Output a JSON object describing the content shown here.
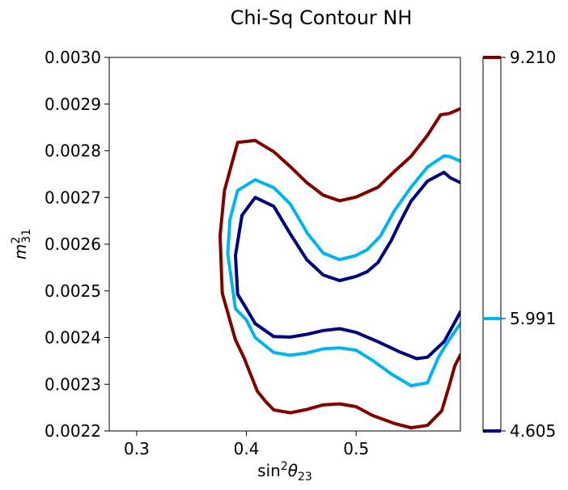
{
  "chart_data": {
    "type": "contour",
    "title": "Chi-Sq Contour NH",
    "xlabel_base": "sin",
    "xlabel_sup": "2",
    "xlabel_theta": "θ",
    "xlabel_sub": "23",
    "ylabel_base": "m",
    "ylabel_sup": "2",
    "ylabel_sub": "31",
    "xlim": [
      0.275,
      0.595
    ],
    "ylim": [
      0.0022,
      0.003
    ],
    "xticks": [
      0.3,
      0.4,
      0.5
    ],
    "xtick_labels": [
      "0.3",
      "0.4",
      "0.5"
    ],
    "yticks": [
      0.0022,
      0.0023,
      0.0024,
      0.0025,
      0.0026,
      0.0027,
      0.0028,
      0.0029,
      0.003
    ],
    "ytick_labels": [
      "0.0022",
      "0.0023",
      "0.0024",
      "0.0025",
      "0.0026",
      "0.0027",
      "0.0028",
      "0.0029",
      "0.0030"
    ],
    "grid": false,
    "colorbar": {
      "ticks": [
        4.605,
        5.991,
        9.21
      ],
      "tick_labels": [
        "4.605",
        "5.991",
        "9.210"
      ]
    },
    "levels": [
      {
        "level": 4.605,
        "color": "#00007f",
        "points": [
          [
            0.595,
            0.002732
          ],
          [
            0.586,
            0.002742
          ],
          [
            0.58,
            0.002754
          ],
          [
            0.565,
            0.002735
          ],
          [
            0.55,
            0.002692
          ],
          [
            0.54,
            0.002647
          ],
          [
            0.532,
            0.002608
          ],
          [
            0.52,
            0.002561
          ],
          [
            0.51,
            0.002541
          ],
          [
            0.5,
            0.002531
          ],
          [
            0.485,
            0.002522
          ],
          [
            0.47,
            0.002534
          ],
          [
            0.455,
            0.002567
          ],
          [
            0.44,
            0.002622
          ],
          [
            0.425,
            0.002681
          ],
          [
            0.408,
            0.0027
          ],
          [
            0.396,
            0.002662
          ],
          [
            0.39,
            0.002576
          ],
          [
            0.392,
            0.002493
          ],
          [
            0.4,
            0.002462
          ],
          [
            0.408,
            0.00243
          ],
          [
            0.425,
            0.002402
          ],
          [
            0.44,
            0.002401
          ],
          [
            0.455,
            0.002407
          ],
          [
            0.47,
            0.002415
          ],
          [
            0.485,
            0.002419
          ],
          [
            0.5,
            0.002411
          ],
          [
            0.52,
            0.002391
          ],
          [
            0.54,
            0.002369
          ],
          [
            0.555,
            0.002355
          ],
          [
            0.565,
            0.002358
          ],
          [
            0.58,
            0.002391
          ],
          [
            0.59,
            0.002433
          ],
          [
            0.595,
            0.002455
          ]
        ]
      },
      {
        "level": 5.991,
        "color": "#00b4f0",
        "points": [
          [
            0.595,
            0.002778
          ],
          [
            0.585,
            0.002788
          ],
          [
            0.58,
            0.002789
          ],
          [
            0.565,
            0.002765
          ],
          [
            0.55,
            0.002722
          ],
          [
            0.535,
            0.002672
          ],
          [
            0.522,
            0.002617
          ],
          [
            0.51,
            0.002588
          ],
          [
            0.5,
            0.002576
          ],
          [
            0.485,
            0.002567
          ],
          [
            0.47,
            0.002581
          ],
          [
            0.456,
            0.002622
          ],
          [
            0.44,
            0.002686
          ],
          [
            0.425,
            0.002721
          ],
          [
            0.408,
            0.002738
          ],
          [
            0.392,
            0.002715
          ],
          [
            0.385,
            0.002653
          ],
          [
            0.383,
            0.00258
          ],
          [
            0.39,
            0.002462
          ],
          [
            0.4,
            0.002438
          ],
          [
            0.408,
            0.0024
          ],
          [
            0.425,
            0.002368
          ],
          [
            0.44,
            0.002362
          ],
          [
            0.455,
            0.002367
          ],
          [
            0.47,
            0.002376
          ],
          [
            0.485,
            0.002378
          ],
          [
            0.5,
            0.002373
          ],
          [
            0.515,
            0.002351
          ],
          [
            0.532,
            0.002322
          ],
          [
            0.55,
            0.002297
          ],
          [
            0.565,
            0.002303
          ],
          [
            0.575,
            0.002358
          ],
          [
            0.585,
            0.002396
          ],
          [
            0.595,
            0.00243
          ]
        ]
      },
      {
        "level": 9.21,
        "color": "#800000",
        "points": [
          [
            0.595,
            0.00289
          ],
          [
            0.585,
            0.00288
          ],
          [
            0.577,
            0.002877
          ],
          [
            0.565,
            0.002833
          ],
          [
            0.55,
            0.002788
          ],
          [
            0.535,
            0.002756
          ],
          [
            0.52,
            0.002722
          ],
          [
            0.5,
            0.002701
          ],
          [
            0.485,
            0.002693
          ],
          [
            0.47,
            0.002705
          ],
          [
            0.455,
            0.002732
          ],
          [
            0.44,
            0.002766
          ],
          [
            0.425,
            0.002798
          ],
          [
            0.408,
            0.002822
          ],
          [
            0.392,
            0.002818
          ],
          [
            0.38,
            0.002715
          ],
          [
            0.376,
            0.002618
          ],
          [
            0.378,
            0.002495
          ],
          [
            0.39,
            0.002395
          ],
          [
            0.398,
            0.002356
          ],
          [
            0.404,
            0.00232
          ],
          [
            0.41,
            0.002285
          ],
          [
            0.418,
            0.002262
          ],
          [
            0.425,
            0.002245
          ],
          [
            0.44,
            0.002239
          ],
          [
            0.455,
            0.002246
          ],
          [
            0.47,
            0.002256
          ],
          [
            0.485,
            0.002258
          ],
          [
            0.5,
            0.002252
          ],
          [
            0.515,
            0.002233
          ],
          [
            0.535,
            0.002216
          ],
          [
            0.55,
            0.002207
          ],
          [
            0.565,
            0.002212
          ],
          [
            0.578,
            0.002243
          ],
          [
            0.585,
            0.002298
          ],
          [
            0.59,
            0.00234
          ],
          [
            0.595,
            0.002363
          ]
        ]
      }
    ]
  }
}
